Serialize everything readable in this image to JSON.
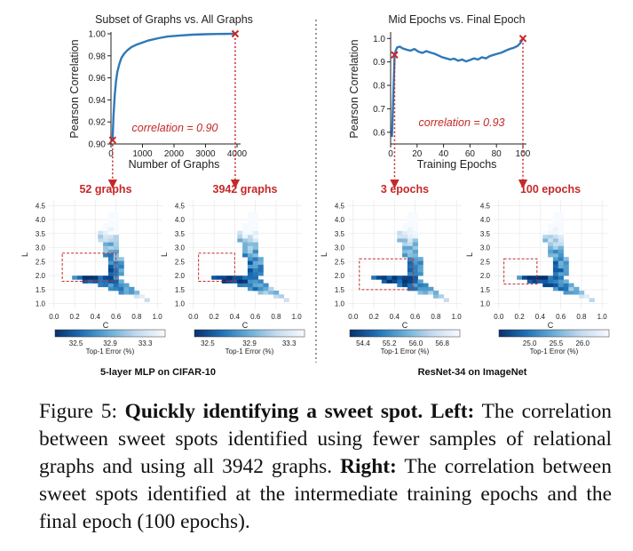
{
  "chart_data": [
    {
      "type": "line",
      "title": "Subset of Graphs vs. All Graphs",
      "xlabel": "Number of Graphs",
      "ylabel": "Pearson Correlation",
      "xlim": [
        0,
        4000
      ],
      "ylim": [
        0.9,
        1.0
      ],
      "xticks": [
        "0",
        "1000",
        "2000",
        "3000",
        "4000"
      ],
      "yticks": [
        "0.90",
        "0.92",
        "0.94",
        "0.96",
        "0.98",
        "1.00"
      ],
      "annotation": "correlation = 0.90",
      "markers": [
        {
          "x": 52,
          "y": 0.9035
        },
        {
          "x": 3942,
          "y": 1.0
        }
      ],
      "series": [
        {
          "name": "correlation",
          "x": [
            52,
            80,
            120,
            160,
            200,
            260,
            330,
            420,
            520,
            650,
            800,
            1000,
            1200,
            1500,
            1800,
            2200,
            2600,
            3000,
            3400,
            3700,
            3942
          ],
          "y": [
            0.9035,
            0.925,
            0.945,
            0.957,
            0.965,
            0.972,
            0.978,
            0.982,
            0.985,
            0.988,
            0.99,
            0.992,
            0.994,
            0.996,
            0.9975,
            0.9985,
            0.9992,
            0.9996,
            0.9998,
            0.9999,
            1.0
          ]
        }
      ]
    },
    {
      "type": "line",
      "title": "Mid Epochs vs. Final Epoch",
      "xlabel": "Training Epochs",
      "ylabel": "Pearson Correlation",
      "xlim": [
        0,
        100
      ],
      "ylim": [
        0.55,
        1.02
      ],
      "xticks": [
        "0",
        "20",
        "40",
        "60",
        "80",
        "100"
      ],
      "yticks": [
        "0.6",
        "0.7",
        "0.8",
        "0.9",
        "1.0"
      ],
      "annotation": "correlation = 0.93",
      "markers": [
        {
          "x": 3,
          "y": 0.93
        },
        {
          "x": 100,
          "y": 1.0
        }
      ],
      "series": [
        {
          "name": "correlation",
          "x": [
            1,
            2,
            3,
            4,
            5,
            7,
            9,
            12,
            15,
            18,
            21,
            24,
            27,
            30,
            33,
            36,
            39,
            42,
            45,
            48,
            51,
            54,
            57,
            60,
            63,
            66,
            69,
            72,
            75,
            78,
            81,
            84,
            87,
            90,
            93,
            96,
            98,
            100
          ],
          "y": [
            0.58,
            0.75,
            0.93,
            0.95,
            0.962,
            0.965,
            0.958,
            0.952,
            0.948,
            0.955,
            0.944,
            0.938,
            0.946,
            0.94,
            0.935,
            0.928,
            0.92,
            0.915,
            0.91,
            0.914,
            0.905,
            0.91,
            0.902,
            0.908,
            0.915,
            0.91,
            0.92,
            0.915,
            0.925,
            0.93,
            0.935,
            0.94,
            0.948,
            0.955,
            0.96,
            0.968,
            0.98,
            1.0
          ]
        }
      ]
    },
    {
      "type": "heatmap",
      "title": "52 graphs",
      "xlabel": "C",
      "ylabel": "L",
      "xticks": [
        "0.0",
        "0.2",
        "0.4",
        "0.6",
        "0.8",
        "1.0"
      ],
      "yticks": [
        "1.0",
        "1.5",
        "2.0",
        "2.5",
        "3.0",
        "3.5",
        "4.0",
        "4.5"
      ],
      "colorbar": {
        "label": "Top-1 Error (%)",
        "ticks": [
          "32.5",
          "32.9",
          "33.3"
        ]
      }
    },
    {
      "type": "heatmap",
      "title": "3942 graphs",
      "xlabel": "C",
      "ylabel": "L",
      "xticks": [
        "0.0",
        "0.2",
        "0.4",
        "0.6",
        "0.8",
        "1.0"
      ],
      "yticks": [
        "1.0",
        "1.5",
        "2.0",
        "2.5",
        "3.0",
        "3.5",
        "4.0",
        "4.5"
      ],
      "colorbar": {
        "label": "Top-1 Error (%)",
        "ticks": [
          "32.5",
          "32.9",
          "33.3"
        ]
      }
    },
    {
      "type": "heatmap",
      "title": "3 epochs",
      "xlabel": "C",
      "ylabel": "L",
      "xticks": [
        "0.0",
        "0.2",
        "0.4",
        "0.6",
        "0.8",
        "1.0"
      ],
      "yticks": [
        "1.0",
        "1.5",
        "2.0",
        "2.5",
        "3.0",
        "3.5",
        "4.0",
        "4.5"
      ],
      "colorbar": {
        "label": "Top-1 Error (%)",
        "ticks": [
          "54.4",
          "55.2",
          "56.0",
          "56.8"
        ]
      }
    },
    {
      "type": "heatmap",
      "title": "100 epochs",
      "xlabel": "C",
      "ylabel": "L",
      "xticks": [
        "0.0",
        "0.2",
        "0.4",
        "0.6",
        "0.8",
        "1.0"
      ],
      "yticks": [
        "1.0",
        "1.5",
        "2.0",
        "2.5",
        "3.0",
        "3.5",
        "4.0",
        "4.5"
      ],
      "colorbar": {
        "label": "Top-1 Error (%)",
        "ticks": [
          "25.0",
          "25.5",
          "26.0"
        ]
      }
    }
  ],
  "group_labels": [
    "5-layer MLP on CIFAR-10",
    "ResNet-34 on ImageNet"
  ],
  "caption": {
    "figure_label": "Figure 5:",
    "bold_title": "Quickly identifying a sweet spot.",
    "left_label": "Left:",
    "left_text": "The correlation between sweet spots identified using fewer samples of relational graphs and using all 3942 graphs.",
    "right_label": "Right:",
    "right_text": "The correlation between sweet spots identified at the intermediate training epochs and the final epoch (100 epochs)."
  },
  "colors": {
    "line": "#2f78b8",
    "marker": "#c62828",
    "annotation": "#c62828",
    "dark": "#08306b",
    "light": "#f7fbff"
  }
}
